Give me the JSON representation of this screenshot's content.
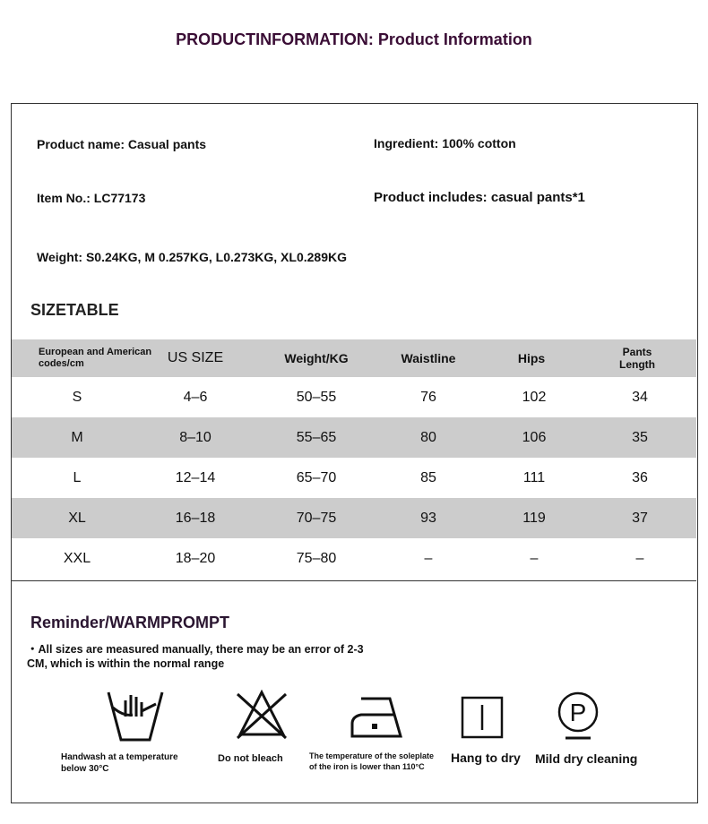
{
  "title": "PRODUCTINFORMATION: Product Information",
  "info": {
    "product_name": "Product name: Casual pants",
    "ingredient": "Ingredient: 100% cotton",
    "item_no": "Item No.: LC77173",
    "includes": "Product includes: casual pants*1",
    "weight": "Weight: S0.24KG, M 0.257KG, L0.273KG, XL0.289KG"
  },
  "size_table": {
    "heading": "SIZETABLE",
    "columns": [
      "European and American codes/cm",
      "US SIZE",
      "Weight/KG",
      "Waistline",
      "Hips",
      "Pants Length"
    ],
    "rows": [
      [
        "S",
        "4–6",
        "50–55",
        "76",
        "102",
        "34"
      ],
      [
        "M",
        "8–10",
        "55–65",
        "80",
        "106",
        "35"
      ],
      [
        "L",
        "12–14",
        "65–70",
        "85",
        "111",
        "36"
      ],
      [
        "XL",
        "16–18",
        "70–75",
        "93",
        "119",
        "37"
      ],
      [
        "XXL",
        "18–20",
        "75–80",
        "–",
        "–",
        "–"
      ]
    ]
  },
  "reminder": {
    "heading": "Reminder/WARMPROMPT",
    "note_line1": "・All sizes are measured manually, there may be an error of 2-3",
    "note_line2": "CM, which is within the normal range"
  },
  "care": [
    {
      "icon": "hand-wash-icon",
      "label": "Handwash at a temperature below 30°C"
    },
    {
      "icon": "no-bleach-icon",
      "label": "Do not bleach"
    },
    {
      "icon": "iron-low-icon",
      "label": "The temperature of the soleplate of the iron is lower than 110°C"
    },
    {
      "icon": "hang-dry-icon",
      "label": "Hang to dry"
    },
    {
      "icon": "dry-clean-p-icon",
      "label": "Mild dry cleaning"
    }
  ],
  "colors": {
    "title": "#3a0d35",
    "row_gray": "#cccccc"
  }
}
